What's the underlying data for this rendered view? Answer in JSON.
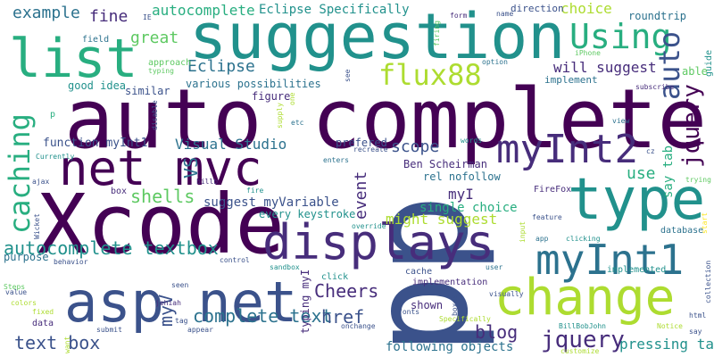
{
  "palette": {
    "dark_purple": "#440154",
    "indigo": "#472d7b",
    "blue": "#3b528b",
    "steel": "#2c728e",
    "teal": "#21918c",
    "green_teal": "#28ae80",
    "green": "#5ec962",
    "lime": "#addc30",
    "yellow": "#fde725"
  },
  "words": [
    {
      "text": "auto complete",
      "color": "#440154"
    },
    {
      "text": "Xcode",
      "color": "#440154"
    },
    {
      "text": "pp",
      "color": "#3b528b"
    },
    {
      "text": "suggestion",
      "color": "#21918c"
    },
    {
      "text": "net mvc",
      "color": "#440154"
    },
    {
      "text": "asp net",
      "color": "#3b528b"
    },
    {
      "text": "change",
      "color": "#addc30"
    },
    {
      "text": "displays",
      "color": "#472d7b"
    },
    {
      "text": "type",
      "color": "#21918c"
    },
    {
      "text": "list",
      "color": "#28ae80"
    },
    {
      "text": "myInt1",
      "color": "#2c728e"
    },
    {
      "text": "myInt2",
      "color": "#472d7b"
    },
    {
      "text": "caching",
      "color": "#28ae80"
    },
    {
      "text": "Using",
      "color": "#28ae80"
    },
    {
      "text": "flux88",
      "color": "#addc30"
    },
    {
      "text": "auto",
      "color": "#3b528b"
    },
    {
      "text": "jquery",
      "color": "#440154"
    },
    {
      "text": "autocomplete textbox",
      "color": "#21918c"
    },
    {
      "text": "complete text",
      "color": "#2c728e"
    },
    {
      "text": "text box",
      "color": "#3b528b"
    },
    {
      "text": "jquery",
      "color": "#472d7b"
    },
    {
      "text": "blog",
      "color": "#472d7b"
    },
    {
      "text": "Cheers",
      "color": "#472d7b"
    },
    {
      "text": "href",
      "color": "#3b528b"
    },
    {
      "text": "myV",
      "color": "#3b528b"
    },
    {
      "text": "VS",
      "color": "#2c728e"
    },
    {
      "text": "shells",
      "color": "#5ec962"
    },
    {
      "text": "Eclipse",
      "color": "#2c728e"
    },
    {
      "text": "great",
      "color": "#5ec962"
    },
    {
      "text": "example",
      "color": "#2c728e"
    },
    {
      "text": "fine",
      "color": "#472d7b"
    },
    {
      "text": "autocomplete",
      "color": "#28ae80"
    },
    {
      "text": "Eclipse Specifically",
      "color": "#21918c"
    },
    {
      "text": "choice",
      "color": "#addc30"
    },
    {
      "text": "roundtrip",
      "color": "#2c728e"
    },
    {
      "text": "will suggest",
      "color": "#472d7b"
    },
    {
      "text": "Visual Studio",
      "color": "#2c728e"
    },
    {
      "text": "scope",
      "color": "#3b528b"
    },
    {
      "text": "use",
      "color": "#28ae80"
    },
    {
      "text": "say tab",
      "color": "#28ae80"
    },
    {
      "text": "event",
      "color": "#472d7b"
    },
    {
      "text": "myI",
      "color": "#472d7b"
    },
    {
      "text": "might suggest",
      "color": "#addc30"
    },
    {
      "text": "single choice",
      "color": "#28ae80"
    },
    {
      "text": "function myInt1",
      "color": "#3b528b"
    },
    {
      "text": "suggest myVariable",
      "color": "#3b528b"
    },
    {
      "text": "every keystroke",
      "color": "#21918c"
    },
    {
      "text": "Ben Scheirman",
      "color": "#472d7b"
    },
    {
      "text": "rel nofollow",
      "color": "#2c728e"
    },
    {
      "text": "prefered",
      "color": "#3b528b"
    },
    {
      "text": "various possibilities",
      "color": "#2c728e"
    },
    {
      "text": "good idea",
      "color": "#21918c"
    },
    {
      "text": "similar",
      "color": "#3b528b"
    },
    {
      "text": "figure",
      "color": "#472d7b"
    },
    {
      "text": "implement",
      "color": "#2c728e"
    },
    {
      "text": "direction",
      "color": "#3b528b"
    },
    {
      "text": "guide",
      "color": "#21918c"
    },
    {
      "text": "able",
      "color": "#5ec962"
    },
    {
      "text": "subscribe",
      "color": "#472d7b"
    },
    {
      "text": "approach",
      "color": "#5ec962"
    },
    {
      "text": "field",
      "color": "#2c728e"
    },
    {
      "text": "typing",
      "color": "#5ec962"
    },
    {
      "text": "option",
      "color": "#2c728e"
    },
    {
      "text": "see",
      "color": "#3b528b"
    },
    {
      "text": "firing",
      "color": "#5ec962"
    },
    {
      "text": "form",
      "color": "#472d7b"
    },
    {
      "text": "name",
      "color": "#3b528b"
    },
    {
      "text": "IE",
      "color": "#3b528b"
    },
    {
      "text": "iPhone",
      "color": "#5ec962"
    },
    {
      "text": "p",
      "color": "#28ae80"
    },
    {
      "text": "one",
      "color": "#addc30"
    },
    {
      "text": "etc",
      "color": "#2c728e"
    },
    {
      "text": "supply",
      "color": "#addc30"
    },
    {
      "text": "disable",
      "color": "#3b528b"
    },
    {
      "text": "Currently",
      "color": "#21918c"
    },
    {
      "text": "words",
      "color": "#21918c"
    },
    {
      "text": "enters",
      "color": "#2c728e"
    },
    {
      "text": "recreate",
      "color": "#3b528b"
    },
    {
      "text": "view",
      "color": "#2c728e"
    },
    {
      "text": "cz",
      "color": "#3b528b"
    },
    {
      "text": "ajax",
      "color": "#3b528b"
    },
    {
      "text": "fire",
      "color": "#21918c"
    },
    {
      "text": "billb",
      "color": "#472d7b"
    },
    {
      "text": "box",
      "color": "#472d7b"
    },
    {
      "text": "FireFox",
      "color": "#472d7b"
    },
    {
      "text": "trying",
      "color": "#5ec962"
    },
    {
      "text": "start",
      "color": "#fde725"
    },
    {
      "text": "database",
      "color": "#2c728e"
    },
    {
      "text": "feature",
      "color": "#3b528b"
    },
    {
      "text": "input",
      "color": "#addc30"
    },
    {
      "text": "override",
      "color": "#21918c"
    },
    {
      "text": "app",
      "color": "#2c728e"
    },
    {
      "text": "clicking",
      "color": "#21918c"
    },
    {
      "text": "Wicket",
      "color": "#3b528b"
    },
    {
      "text": "purpose",
      "color": "#2c728e"
    },
    {
      "text": "behavior",
      "color": "#3b528b"
    },
    {
      "text": "control",
      "color": "#3b528b"
    },
    {
      "text": "sandbox",
      "color": "#21918c"
    },
    {
      "text": "Steps",
      "color": "#5ec962"
    },
    {
      "text": "seen",
      "color": "#3b528b"
    },
    {
      "text": "value",
      "color": "#3b528b"
    },
    {
      "text": "colors",
      "color": "#addc30"
    },
    {
      "text": "jehiah",
      "color": "#472d7b"
    },
    {
      "text": "fixed",
      "color": "#addc30"
    },
    {
      "text": "tag",
      "color": "#3b528b"
    },
    {
      "text": "click",
      "color": "#21918c"
    },
    {
      "text": "typing myI",
      "color": "#472d7b"
    },
    {
      "text": "cache",
      "color": "#3b528b"
    },
    {
      "text": "implementation",
      "color": "#472d7b"
    },
    {
      "text": "shown",
      "color": "#472d7b"
    },
    {
      "text": "boxes",
      "color": "#3b528b"
    },
    {
      "text": "visually",
      "color": "#3b528b"
    },
    {
      "text": "user",
      "color": "#2c728e"
    },
    {
      "text": "implemented",
      "color": "#21918c"
    },
    {
      "text": "collection",
      "color": "#3b528b"
    },
    {
      "text": "BillBobJohn",
      "color": "#21918c"
    },
    {
      "text": "Notice",
      "color": "#addc30"
    },
    {
      "text": "html",
      "color": "#3b528b"
    },
    {
      "text": "say",
      "color": "#3b528b"
    },
    {
      "text": "data",
      "color": "#472d7b"
    },
    {
      "text": "want",
      "color": "#addc30"
    },
    {
      "text": "submit",
      "color": "#3b528b"
    },
    {
      "text": "appear",
      "color": "#3b528b"
    },
    {
      "text": "onchange",
      "color": "#3b528b"
    },
    {
      "text": "fonts",
      "color": "#3b528b"
    },
    {
      "text": "Specifically",
      "color": "#addc30"
    },
    {
      "text": "following objects",
      "color": "#2c728e"
    },
    {
      "text": "pressing tab",
      "color": "#21918c"
    },
    {
      "text": "customize",
      "color": "#addc30"
    }
  ]
}
